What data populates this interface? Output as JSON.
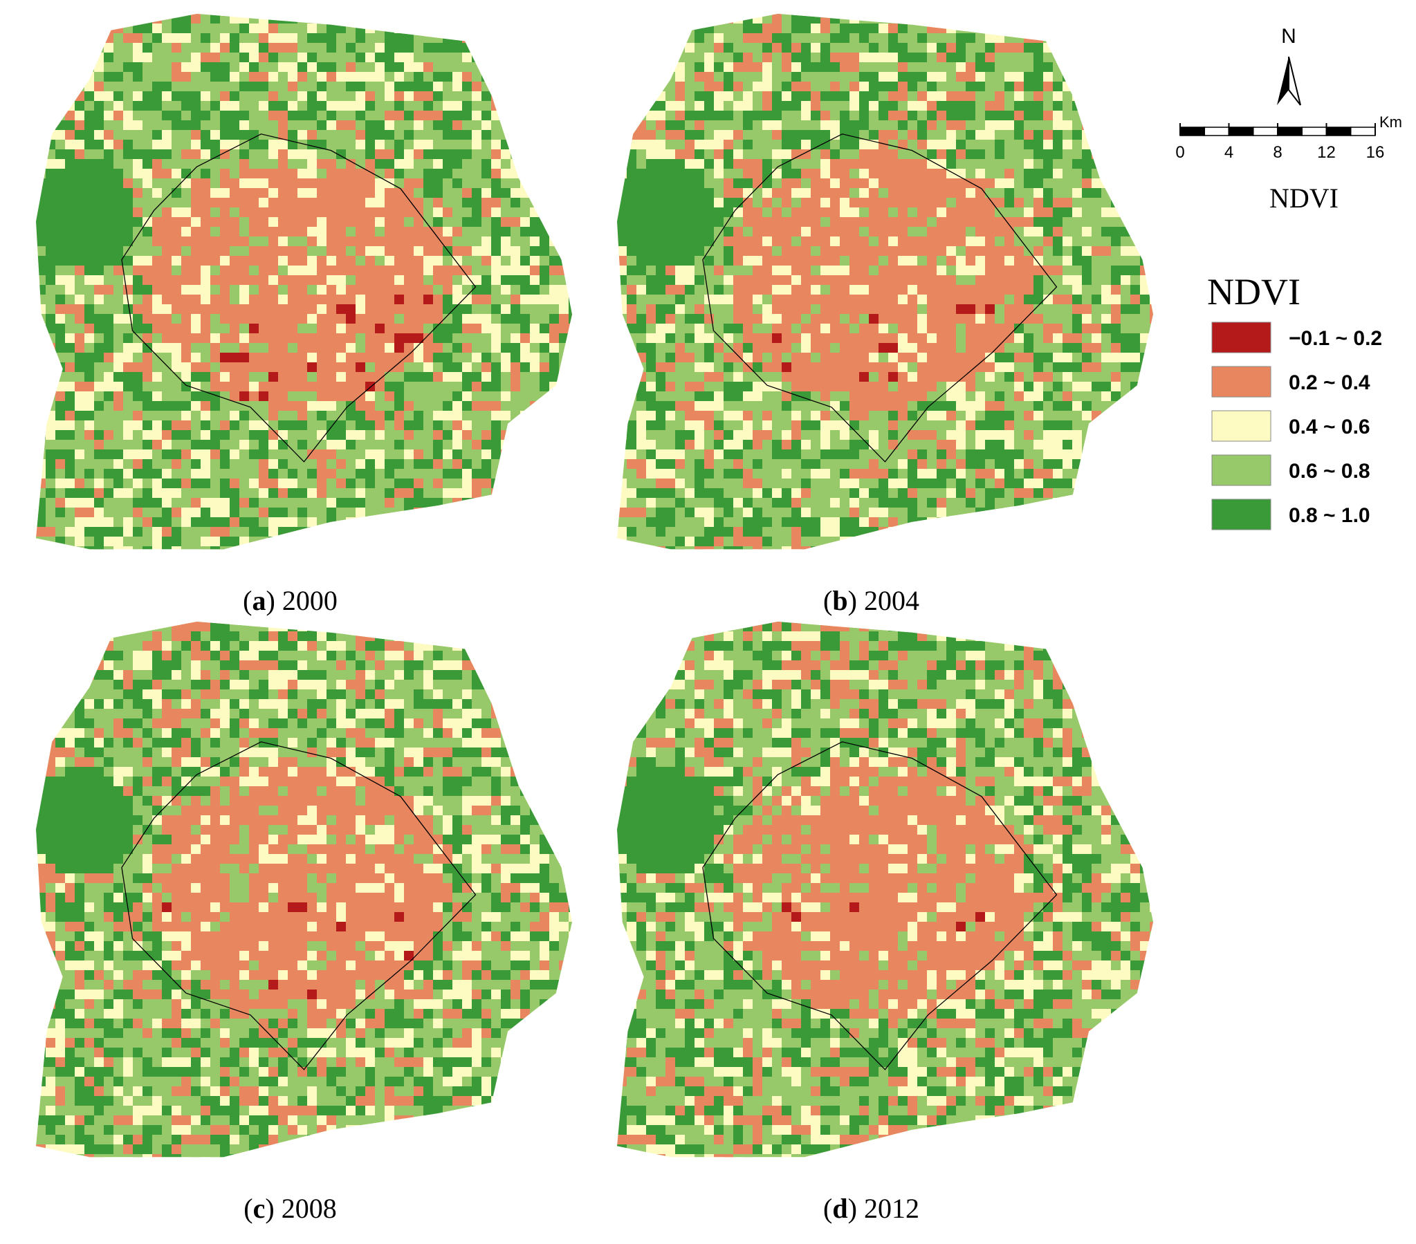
{
  "panels": [
    {
      "prefix": "(",
      "letter": "a",
      "suffix": ") 2000"
    },
    {
      "prefix": "(",
      "letter": "b",
      "suffix": ") 2004"
    },
    {
      "prefix": "(",
      "letter": "c",
      "suffix": ") 2008"
    },
    {
      "prefix": "(",
      "letter": "d",
      "suffix": ") 2012"
    }
  ],
  "north": "N",
  "scale_bar": {
    "ticks": [
      0,
      4,
      8,
      12,
      16
    ],
    "unit": "Km"
  },
  "subtitle": "NDVI",
  "legend": {
    "title": "NDVI",
    "items": [
      {
        "label": "−0.1 ~ 0.2",
        "color": "#b51a1a"
      },
      {
        "label": "0.2 ~ 0.4",
        "color": "#e8875f"
      },
      {
        "label": "0.4 ~ 0.6",
        "color": "#fdfbc2"
      },
      {
        "label": "0.6 ~ 0.8",
        "color": "#97c96a"
      },
      {
        "label": "0.8 ~ 1.0",
        "color": "#3a9a38"
      }
    ]
  }
}
